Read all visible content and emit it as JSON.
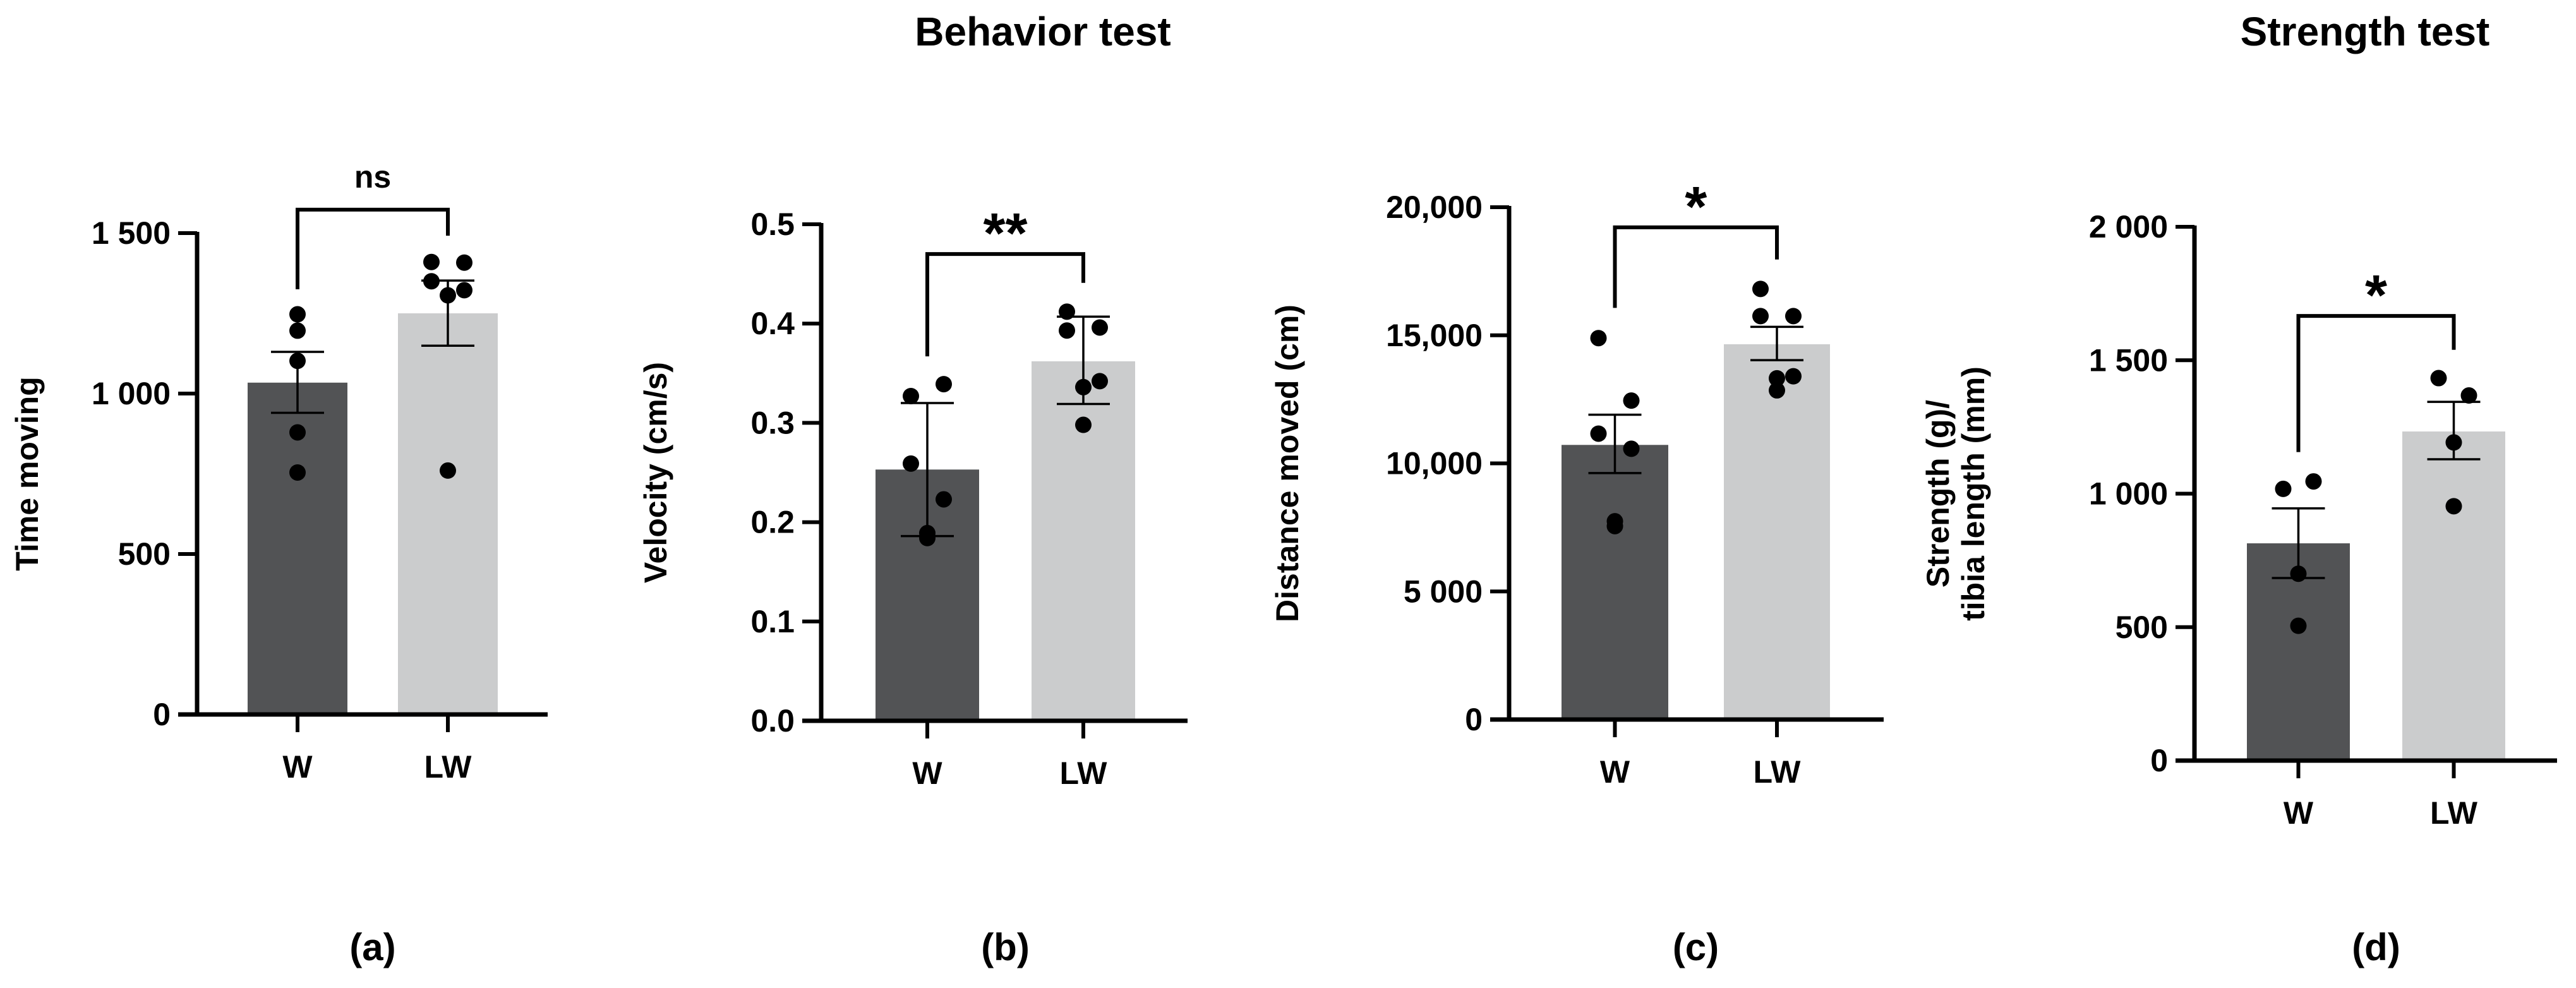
{
  "titles": [
    "Behavior test",
    "Strength test"
  ],
  "colors": {
    "W": "#525355",
    "LW": "#cbcccd",
    "ink": "#000000"
  },
  "chart_data": [
    {
      "type": "bar",
      "panel": "(a)",
      "ylabel": "Time moving",
      "xlabel": "",
      "categories": [
        "W",
        "LW"
      ],
      "ylim": [
        0,
        1500
      ],
      "yticks": [
        0,
        500,
        1000,
        1500
      ],
      "ytick_labels": [
        "0",
        "500",
        "1 000",
        "1 500"
      ],
      "values": [
        1034,
        1250
      ],
      "err_low": [
        940,
        1149
      ],
      "err_high": [
        1130,
        1352
      ],
      "points": [
        [
          1247,
          1196,
          1102,
          879,
          754
        ],
        [
          1410,
          1408,
          1350,
          1322,
          1306,
          760
        ]
      ],
      "significance": {
        "label": "ns",
        "top": 1573,
        "left_end": 1325,
        "right_end": 1492
      }
    },
    {
      "type": "bar",
      "panel": "(b)",
      "ylabel": "Velocity (cm/s)",
      "xlabel": "",
      "categories": [
        "W",
        "LW"
      ],
      "ylim": [
        0,
        0.5
      ],
      "yticks": [
        0,
        0.1,
        0.2,
        0.3,
        0.4,
        0.5
      ],
      "ytick_labels": [
        "0.0",
        "0.1",
        "0.2",
        "0.3",
        "0.4",
        "0.5"
      ],
      "values": [
        0.253,
        0.362
      ],
      "err_low": [
        0.186,
        0.319
      ],
      "err_high": [
        0.32,
        0.407
      ],
      "points": [
        [
          0.327,
          0.339,
          0.259,
          0.223,
          0.184,
          0.189
        ],
        [
          0.412,
          0.396,
          0.393,
          0.342,
          0.336,
          0.298
        ]
      ],
      "significance": {
        "label": "**",
        "top": 0.47,
        "left_end": 0.367,
        "right_end": 0.441
      }
    },
    {
      "type": "bar",
      "panel": "(c)",
      "ylabel": "Distance moved (cm)",
      "xlabel": "",
      "categories": [
        "W",
        "LW"
      ],
      "ylim": [
        0,
        20000
      ],
      "yticks": [
        0,
        5000,
        10000,
        15000,
        20000
      ],
      "ytick_labels": [
        "0",
        "5 000",
        "10,000",
        "15,000",
        "20,000"
      ],
      "values": [
        10720,
        14650
      ],
      "err_low": [
        9620,
        14030
      ],
      "err_high": [
        11900,
        15330
      ],
      "points": [
        [
          14890,
          12450,
          11160,
          10570,
          7740,
          7550
        ],
        [
          16810,
          15750,
          15750,
          13400,
          13320,
          12850
        ]
      ],
      "significance": {
        "label": "*",
        "top": 19214,
        "left_end": 16070,
        "right_end": 17960
      }
    },
    {
      "type": "bar",
      "panel": "(d)",
      "ylabel": "Strength (g)/\ntibia length (mm)",
      "xlabel": "",
      "ylabel_lines": [
        "Strength (g)/",
        "tibia length (mm)"
      ],
      "categories": [
        "W",
        "LW"
      ],
      "ylim": [
        0,
        2000
      ],
      "yticks": [
        0,
        500,
        1000,
        1500,
        2000
      ],
      "ytick_labels": [
        "0",
        "500",
        "1 000",
        "1 500",
        "2 000"
      ],
      "values": [
        814,
        1233
      ],
      "err_low": [
        684,
        1129
      ],
      "err_high": [
        945,
        1344
      ],
      "points": [
        [
          1018,
          1046,
          700,
          505
        ],
        [
          1433,
          1368,
          1192,
          953
        ]
      ],
      "significance": {
        "label": "*",
        "top": 1666,
        "left_end": 1156,
        "right_end": 1539
      }
    }
  ]
}
